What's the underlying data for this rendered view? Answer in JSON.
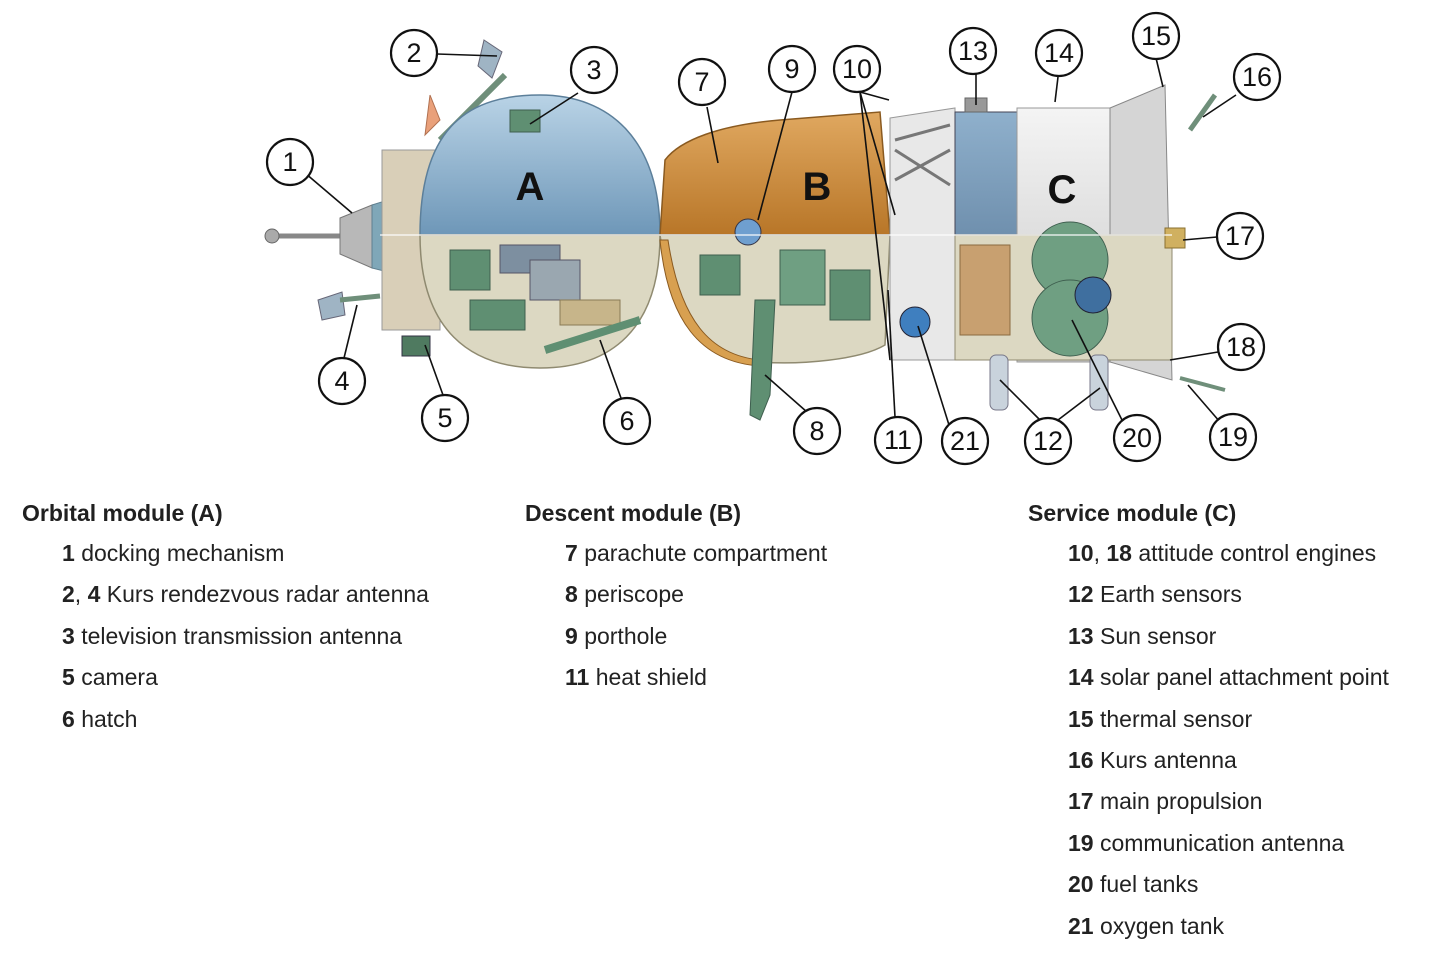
{
  "diagram": {
    "module_letters": [
      "A",
      "B",
      "C"
    ],
    "callouts": [
      "1",
      "2",
      "3",
      "4",
      "5",
      "6",
      "7",
      "8",
      "9",
      "10",
      "11",
      "12",
      "13",
      "14",
      "15",
      "16",
      "17",
      "18",
      "19",
      "20",
      "21"
    ]
  },
  "legend": [
    {
      "heading": "Orbital module (A)",
      "items": [
        {
          "nums": [
            {
              "n": "1"
            }
          ],
          "text": "docking mechanism"
        },
        {
          "nums": [
            {
              "n": "2"
            },
            {
              "n": "4"
            }
          ],
          "text": "Kurs rendezvous radar antenna"
        },
        {
          "nums": [
            {
              "n": "3"
            }
          ],
          "text": "television transmission antenna"
        },
        {
          "nums": [
            {
              "n": "5"
            }
          ],
          "text": "camera"
        },
        {
          "nums": [
            {
              "n": "6"
            }
          ],
          "text": "hatch"
        }
      ]
    },
    {
      "heading": "Descent module (B)",
      "items": [
        {
          "nums": [
            {
              "n": "7"
            }
          ],
          "text": "parachute compartment"
        },
        {
          "nums": [
            {
              "n": "8"
            }
          ],
          "text": "periscope"
        },
        {
          "nums": [
            {
              "n": "9"
            }
          ],
          "text": "porthole"
        },
        {
          "nums": [
            {
              "n": "11"
            }
          ],
          "text": "heat shield"
        }
      ]
    },
    {
      "heading": "Service module (C)",
      "items": [
        {
          "nums": [
            {
              "n": "10"
            },
            {
              "n": "18"
            }
          ],
          "text": "attitude control engines"
        },
        {
          "nums": [
            {
              "n": "12"
            }
          ],
          "text": "Earth sensors"
        },
        {
          "nums": [
            {
              "n": "13"
            }
          ],
          "text": "Sun sensor"
        },
        {
          "nums": [
            {
              "n": "14"
            }
          ],
          "text": "solar panel attachment point"
        },
        {
          "nums": [
            {
              "n": "15"
            }
          ],
          "text": "thermal sensor"
        },
        {
          "nums": [
            {
              "n": "16"
            }
          ],
          "text": "Kurs antenna"
        },
        {
          "nums": [
            {
              "n": "17"
            }
          ],
          "text": "main propulsion"
        },
        {
          "nums": [
            {
              "n": "19"
            }
          ],
          "text": "communication antenna"
        },
        {
          "nums": [
            {
              "n": "20"
            }
          ],
          "text": "fuel tanks"
        },
        {
          "nums": [
            {
              "n": "21"
            }
          ],
          "text": "oxygen tank"
        }
      ]
    }
  ],
  "colors": {
    "orbital_blue": "#8fb3cf",
    "descent_orange": "#c98a3c",
    "service_gray": "#e4e4e4",
    "service_blue": "#6f8fae",
    "interior_beige": "#dcd8c2",
    "equipment_green": "#5f8f72"
  }
}
